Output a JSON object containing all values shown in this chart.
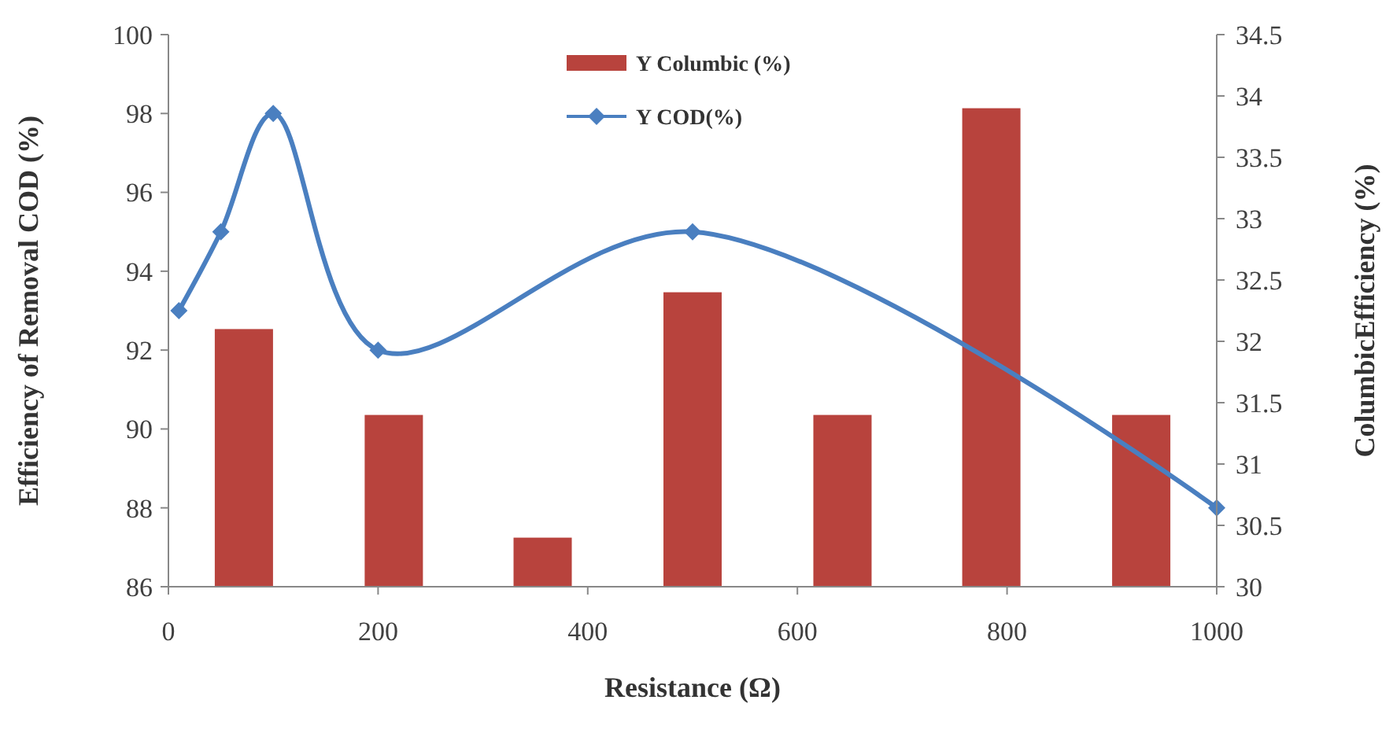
{
  "chart_data": {
    "type": "bar",
    "xlabel": "Resistance (Ω)",
    "ylabel": "Efficiency of Removal COD (%)",
    "y2label": "ColumbicEfficiency (%)",
    "xlim": [
      0,
      1000
    ],
    "xticks": [
      0,
      200,
      400,
      600,
      800,
      1000
    ],
    "ylim": [
      86,
      100
    ],
    "yticks": [
      86,
      88,
      90,
      92,
      94,
      96,
      98,
      100
    ],
    "y2lim": [
      30,
      34.5
    ],
    "y2ticks": [
      30,
      30.5,
      31,
      31.5,
      32,
      32.5,
      33,
      33.5,
      34,
      34.5
    ],
    "series": [
      {
        "name": "Y Columbic (%)",
        "axis": "y2",
        "color": "#b8433d",
        "x": [
          72,
          215,
          357,
          500,
          643,
          785,
          928
        ],
        "values": [
          32.1,
          31.4,
          30.4,
          32.4,
          31.4,
          33.9,
          31.4
        ]
      },
      {
        "name": "Y COD(%)",
        "type": "line",
        "color": "#4a7fc0",
        "marker": "diamond",
        "x": [
          10,
          50,
          100,
          200,
          500,
          1000
        ],
        "values": [
          93,
          95,
          98,
          92,
          95,
          88
        ]
      }
    ],
    "legend": "top",
    "grid": false
  }
}
